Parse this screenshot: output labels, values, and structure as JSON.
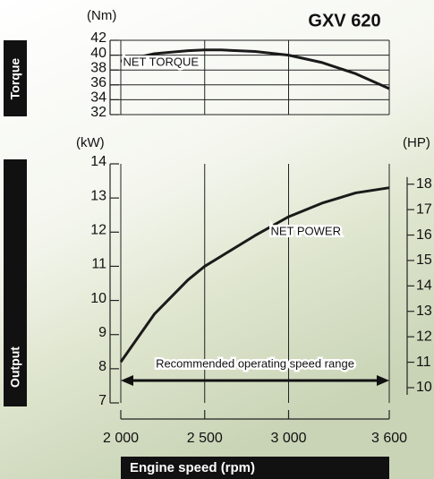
{
  "title": "GXV 620",
  "chart_data": [
    {
      "type": "line",
      "title": "Torque",
      "ylabel": "(Nm)",
      "x": [
        2000,
        2200,
        2400,
        2500,
        2600,
        2800,
        3000,
        3200,
        3400,
        3600
      ],
      "series": [
        {
          "name": "NET TORQUE",
          "color": "#1a1a1a",
          "values": [
            39.2,
            40.2,
            40.6,
            40.7,
            40.7,
            40.5,
            40.0,
            39.0,
            37.5,
            35.5
          ]
        }
      ],
      "xlim": [
        2000,
        3600
      ],
      "ylim": [
        32,
        42
      ],
      "yticks": [
        32,
        34,
        36,
        38,
        40,
        42
      ],
      "grid": true
    },
    {
      "type": "line",
      "title": "Output",
      "ylabel": "(kW)",
      "y2label": "(HP)",
      "xlabel": "Engine speed (rpm)",
      "annotation": "Recommended operating speed range",
      "x": [
        2000,
        2200,
        2400,
        2500,
        2600,
        2800,
        3000,
        3200,
        3400,
        3600
      ],
      "series": [
        {
          "name": "NET POWER",
          "color": "#1a1a1a",
          "values": [
            8.2,
            9.6,
            10.6,
            11.0,
            11.3,
            11.9,
            12.45,
            12.85,
            13.15,
            13.3
          ]
        }
      ],
      "xlim": [
        2000,
        3600
      ],
      "xticks": [
        {
          "value": 2000,
          "label": "2 000"
        },
        {
          "value": 2500,
          "label": "2 500"
        },
        {
          "value": 3000,
          "label": "3 000"
        },
        {
          "value": 3600,
          "label": "3 600"
        }
      ],
      "ylim": [
        7,
        14
      ],
      "yticks": [
        7,
        8,
        9,
        10,
        11,
        12,
        13,
        14
      ],
      "y2lim": [
        9.4,
        18.8
      ],
      "y2ticks": [
        10,
        11,
        12,
        13,
        14,
        15,
        16,
        17,
        18
      ]
    }
  ]
}
